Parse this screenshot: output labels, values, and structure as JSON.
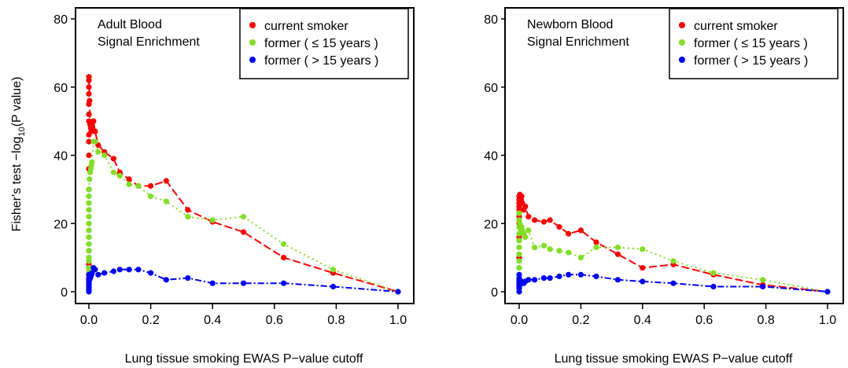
{
  "figure": {
    "ylabel_prefix": "Fisher's test  −log",
    "ylabel_sub": "10",
    "ylabel_suffix": "(P value)"
  },
  "chart_data": [
    {
      "type": "line",
      "annotation": [
        "Adult Blood",
        "Signal Enrichment"
      ],
      "xlabel": "Lung tissue smoking EWAS P−value cutoff",
      "ylabel": "Fisher's test −log10(P value)",
      "xlim": [
        0,
        1
      ],
      "ylim": [
        0,
        80
      ],
      "x_ticks": [
        "0.0",
        "0.2",
        "0.4",
        "0.6",
        "0.8",
        "1.0"
      ],
      "y_ticks": [
        "0",
        "20",
        "40",
        "60",
        "80"
      ],
      "grid": false,
      "legend_position": "top-right",
      "series": [
        {
          "name": "current smoker",
          "color": "#ff0000",
          "dash": "10,4",
          "x": [
            0,
            0,
            0,
            0,
            0,
            0,
            0,
            0,
            0,
            0,
            0,
            0,
            0,
            0,
            0,
            0.002,
            0.004,
            0.006,
            0.008,
            0.01,
            0.015,
            0.02,
            0.03,
            0.05,
            0.08,
            0.1,
            0.13,
            0.16,
            0.2,
            0.25,
            0.32,
            0.4,
            0.5,
            0.63,
            0.79,
            1.0
          ],
          "y": [
            63,
            62,
            60,
            58,
            55,
            52,
            50,
            46,
            44,
            40,
            36,
            30,
            12,
            8,
            5,
            56,
            49,
            48,
            47,
            48,
            50,
            47,
            43,
            41,
            39,
            35,
            33,
            31,
            31,
            32.5,
            24,
            20.5,
            17.5,
            10,
            5.5,
            0
          ]
        },
        {
          "name": "former ( ≤ 15 years )",
          "color": "#80e020",
          "dash": "2,4",
          "x": [
            0,
            0,
            0,
            0,
            0,
            0,
            0,
            0,
            0,
            0,
            0,
            0,
            0,
            0,
            0.002,
            0.004,
            0.006,
            0.008,
            0.01,
            0.015,
            0.02,
            0.03,
            0.05,
            0.08,
            0.1,
            0.13,
            0.16,
            0.2,
            0.25,
            0.32,
            0.4,
            0.5,
            0.63,
            0.79,
            1.0
          ],
          "y": [
            30,
            28,
            26,
            24,
            22,
            20,
            18,
            16,
            14,
            12,
            10,
            9,
            7,
            6,
            33,
            35,
            36,
            37,
            38,
            44,
            44,
            41,
            40,
            35,
            34,
            31.5,
            31,
            28,
            26.5,
            22,
            21,
            22,
            14,
            6.5,
            0
          ]
        },
        {
          "name": "former ( > 15 years )",
          "color": "#0000ff",
          "dash": "8,3,2,3",
          "x": [
            0,
            0,
            0,
            0,
            0,
            0,
            0,
            0,
            0,
            0,
            0.002,
            0.004,
            0.006,
            0.008,
            0.01,
            0.015,
            0.02,
            0.03,
            0.05,
            0.08,
            0.1,
            0.13,
            0.16,
            0.2,
            0.25,
            0.32,
            0.4,
            0.5,
            0.63,
            0.79,
            1.0
          ],
          "y": [
            5,
            4,
            3.5,
            3,
            2.5,
            2,
            1.5,
            1,
            0.5,
            0,
            3.5,
            4,
            4.5,
            5,
            5.5,
            7,
            6.5,
            5,
            5.5,
            6,
            6.5,
            6.5,
            6.5,
            5.5,
            3.5,
            4,
            2.5,
            2.5,
            2.5,
            1.5,
            0
          ]
        }
      ]
    },
    {
      "type": "line",
      "annotation": [
        "Newborn Blood",
        "Signal Enrichment"
      ],
      "xlabel": "Lung tissue smoking EWAS P−value cutoff",
      "ylabel": "",
      "xlim": [
        0,
        1
      ],
      "ylim": [
        0,
        80
      ],
      "x_ticks": [
        "0.0",
        "0.2",
        "0.4",
        "0.6",
        "0.8",
        "1.0"
      ],
      "y_ticks": [
        "0",
        "20",
        "40",
        "60",
        "80"
      ],
      "grid": false,
      "legend_position": "top-right",
      "series": [
        {
          "name": "current smoker",
          "color": "#ff0000",
          "dash": "10,4",
          "x": [
            0,
            0,
            0,
            0,
            0,
            0,
            0,
            0,
            0,
            0,
            0.002,
            0.004,
            0.006,
            0.008,
            0.01,
            0.015,
            0.02,
            0.03,
            0.05,
            0.08,
            0.1,
            0.13,
            0.16,
            0.2,
            0.25,
            0.32,
            0.4,
            0.5,
            0.63,
            0.79,
            1.0
          ],
          "y": [
            28,
            27,
            26,
            25,
            24,
            23,
            22,
            20,
            16,
            10,
            28.5,
            28,
            27,
            28,
            26,
            24,
            25,
            22,
            21,
            20.5,
            21,
            19,
            17,
            18,
            14.5,
            11,
            7,
            8,
            5,
            2,
            0
          ]
        },
        {
          "name": "former ( ≤ 15 years )",
          "color": "#80e020",
          "dash": "2,4",
          "x": [
            0,
            0,
            0,
            0,
            0,
            0,
            0,
            0,
            0,
            0,
            0.002,
            0.004,
            0.006,
            0.008,
            0.01,
            0.015,
            0.02,
            0.03,
            0.05,
            0.08,
            0.1,
            0.13,
            0.16,
            0.2,
            0.25,
            0.32,
            0.4,
            0.5,
            0.63,
            0.79,
            1.0
          ],
          "y": [
            23,
            21,
            19,
            17,
            15,
            13,
            11,
            9,
            7,
            5,
            20,
            19,
            18,
            19,
            18,
            17,
            16,
            18,
            13,
            13.5,
            12.5,
            12,
            11.5,
            10,
            13,
            13,
            12.5,
            9,
            5.5,
            3.5,
            0
          ]
        },
        {
          "name": "former ( > 15 years )",
          "color": "#0000ff",
          "dash": "8,3,2,3",
          "x": [
            0,
            0,
            0,
            0,
            0,
            0,
            0,
            0,
            0,
            0.002,
            0.004,
            0.006,
            0.008,
            0.01,
            0.015,
            0.02,
            0.03,
            0.05,
            0.08,
            0.1,
            0.13,
            0.16,
            0.2,
            0.25,
            0.32,
            0.4,
            0.5,
            0.63,
            0.79,
            1.0
          ],
          "y": [
            5,
            4,
            3.5,
            3,
            2.5,
            2,
            1.5,
            1,
            0,
            2,
            2.5,
            2.5,
            3,
            2.5,
            2.5,
            3,
            3.5,
            3.5,
            4,
            4,
            4.5,
            5,
            5,
            4.5,
            3.5,
            3,
            2.5,
            1.5,
            1.5,
            0
          ]
        }
      ]
    }
  ]
}
